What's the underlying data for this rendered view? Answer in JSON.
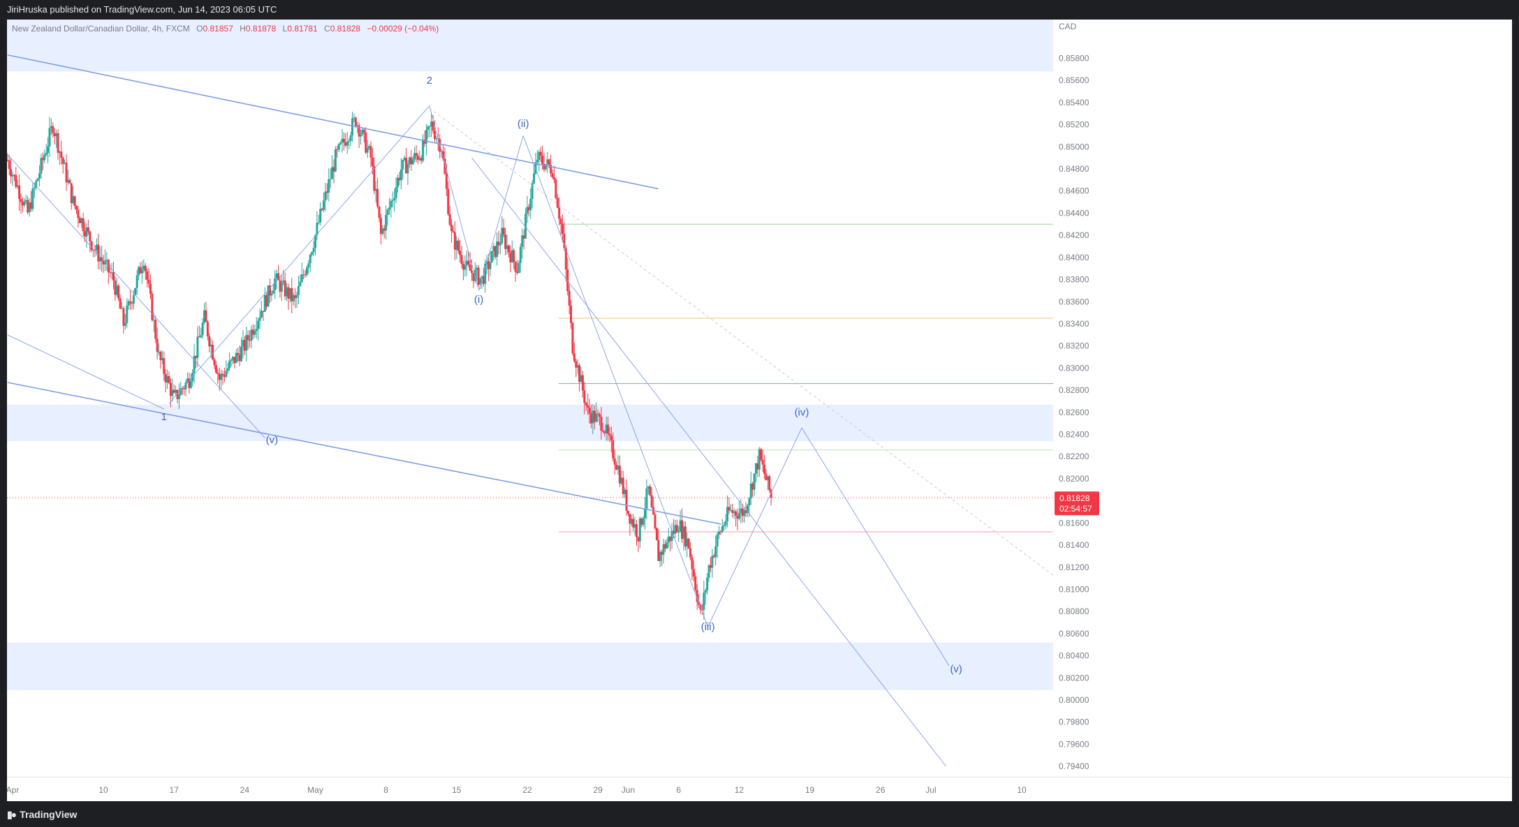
{
  "publisher_line": "JiriHruska published on TradingView.com, Jun 14, 2023 06:05 UTC",
  "legend": {
    "symbol": "New Zealand Dollar/Canadian Dollar, 4h, FXCM",
    "o_label": "O",
    "o_value": "0.81857",
    "h_label": "H",
    "h_value": "0.81878",
    "l_label": "L",
    "l_value": "0.81781",
    "c_label": "C",
    "c_value": "0.81828",
    "change": "−0.00029 (−0.04%)"
  },
  "brand": "TradingView",
  "colors": {
    "up": "#26a69a",
    "down": "#f23645",
    "zone": "#e8efff",
    "trend": "#7d9ee8",
    "wave": "#5d7fe0",
    "price_tag": "#f23645"
  },
  "chart_data": {
    "type": "candlestick",
    "timeframe": "4h",
    "currency_label": "CAD",
    "ylim": [
      0.793,
      0.8615
    ],
    "y_ticks": [
      "0.85800",
      "0.85600",
      "0.85400",
      "0.85200",
      "0.85000",
      "0.84800",
      "0.84600",
      "0.84400",
      "0.84200",
      "0.84000",
      "0.83800",
      "0.83600",
      "0.83400",
      "0.83200",
      "0.83000",
      "0.82800",
      "0.82600",
      "0.82400",
      "0.82200",
      "0.82000",
      "0.81600",
      "0.81400",
      "0.81200",
      "0.81000",
      "0.80800",
      "0.80600",
      "0.80400",
      "0.80200",
      "0.80000",
      "0.79800",
      "0.79600",
      "0.79400"
    ],
    "x_ticks": [
      {
        "label": "Apr",
        "day": 0
      },
      {
        "label": "10",
        "day": 9
      },
      {
        "label": "17",
        "day": 16
      },
      {
        "label": "24",
        "day": 23
      },
      {
        "label": "May",
        "day": 30
      },
      {
        "label": "8",
        "day": 37
      },
      {
        "label": "15",
        "day": 44
      },
      {
        "label": "22",
        "day": 51
      },
      {
        "label": "29",
        "day": 58
      },
      {
        "label": "Jun",
        "day": 61
      },
      {
        "label": "6",
        "day": 66
      },
      {
        "label": "12",
        "day": 72
      },
      {
        "label": "19",
        "day": 79
      },
      {
        "label": "26",
        "day": 86
      },
      {
        "label": "Jul",
        "day": 91
      },
      {
        "label": "10",
        "day": 100
      }
    ],
    "last_price": "0.81828",
    "countdown": "02:54:57",
    "price_path": [
      [
        -0.5,
        0.8488
      ],
      [
        1.5,
        0.844
      ],
      [
        4.0,
        0.852
      ],
      [
        6.0,
        0.845
      ],
      [
        8.0,
        0.841
      ],
      [
        10.0,
        0.838
      ],
      [
        11.0,
        0.834
      ],
      [
        13.0,
        0.84
      ],
      [
        14.5,
        0.831
      ],
      [
        16.0,
        0.8272
      ],
      [
        17.5,
        0.829
      ],
      [
        19.0,
        0.8345
      ],
      [
        20.5,
        0.829
      ],
      [
        23.0,
        0.832
      ],
      [
        26.0,
        0.838
      ],
      [
        28.0,
        0.836
      ],
      [
        30.0,
        0.842
      ],
      [
        32.0,
        0.849
      ],
      [
        34.0,
        0.8525
      ],
      [
        35.5,
        0.849
      ],
      [
        36.5,
        0.842
      ],
      [
        38.5,
        0.848
      ],
      [
        40.5,
        0.8495
      ],
      [
        41.5,
        0.852
      ],
      [
        42.5,
        0.85
      ],
      [
        43.5,
        0.842
      ],
      [
        45.0,
        0.839
      ],
      [
        46.5,
        0.838
      ],
      [
        48.5,
        0.842
      ],
      [
        50.0,
        0.839
      ],
      [
        51.0,
        0.844
      ],
      [
        52.0,
        0.849
      ],
      [
        53.5,
        0.848
      ],
      [
        54.5,
        0.842
      ],
      [
        55.5,
        0.832
      ],
      [
        57.0,
        0.826
      ],
      [
        58.5,
        0.825
      ],
      [
        60.0,
        0.821
      ],
      [
        61.0,
        0.817
      ],
      [
        62.0,
        0.815
      ],
      [
        63.0,
        0.819
      ],
      [
        64.0,
        0.813
      ],
      [
        66.0,
        0.816
      ],
      [
        67.0,
        0.814
      ],
      [
        68.2,
        0.8075
      ],
      [
        69.0,
        0.812
      ],
      [
        70.0,
        0.815
      ],
      [
        71.0,
        0.817
      ],
      [
        72.5,
        0.817
      ],
      [
        74.0,
        0.822
      ],
      [
        75.2,
        0.8183
      ]
    ],
    "annotations": {
      "waves": [
        {
          "label": "1",
          "day": 15.0,
          "price": 0.8253
        },
        {
          "label": "2",
          "day": 41.3,
          "price": 0.8557
        },
        {
          "label": "(v)",
          "day": 25.7,
          "price": 0.8232
        },
        {
          "label": "(i)",
          "day": 46.2,
          "price": 0.8359
        },
        {
          "label": "(ii)",
          "day": 50.6,
          "price": 0.8518
        },
        {
          "label": "(iii)",
          "day": 68.9,
          "price": 0.8063
        },
        {
          "label": "(iv)",
          "day": 78.2,
          "price": 0.8257
        },
        {
          "label": "(v)",
          "day": 93.5,
          "price": 0.8025
        }
      ],
      "zones": [
        {
          "y1": 0.8615,
          "y2": 0.8568
        },
        {
          "y1": 0.8267,
          "y2": 0.8234
        },
        {
          "y1": 0.8052,
          "y2": 0.8009
        }
      ],
      "h_levels": [
        {
          "price": 0.843,
          "color": "#9ed29a"
        },
        {
          "price": 0.8345,
          "color": "#f0c27a"
        },
        {
          "price": 0.8286,
          "color": "#7d9ee8"
        },
        {
          "price": 0.8226,
          "color": "#bfe0bf"
        },
        {
          "price": 0.8152,
          "color": "#f59aa5"
        }
      ],
      "trendlines": [
        {
          "x1": -0.5,
          "y1": 0.8583,
          "x2": 64.0,
          "y2": 0.8462,
          "w": 1.6,
          "c": "#7d9ee8"
        },
        {
          "x1": -0.5,
          "y1": 0.8287,
          "x2": 70.2,
          "y2": 0.8159,
          "w": 1.6,
          "c": "#7d9ee8"
        },
        {
          "x1": -0.5,
          "y1": 0.833,
          "x2": 15.0,
          "y2": 0.8263,
          "w": 0.9,
          "c": "#7d9ee8"
        },
        {
          "x1": -0.5,
          "y1": 0.8493,
          "x2": 25.0,
          "y2": 0.8237,
          "w": 0.9,
          "c": "#7d9ee8"
        },
        {
          "x1": 15.5,
          "y1": 0.8268,
          "x2": 41.3,
          "y2": 0.8537,
          "w": 0.9,
          "c": "#7d9ee8"
        },
        {
          "x1": 41.3,
          "y1": 0.8537,
          "x2": 46.2,
          "y2": 0.837,
          "w": 0.9,
          "c": "#7d9ee8"
        },
        {
          "x1": 46.2,
          "y1": 0.837,
          "x2": 50.6,
          "y2": 0.851,
          "w": 0.9,
          "c": "#7d9ee8"
        },
        {
          "x1": 50.6,
          "y1": 0.851,
          "x2": 68.9,
          "y2": 0.8066,
          "w": 0.9,
          "c": "#7d9ee8"
        },
        {
          "x1": 68.9,
          "y1": 0.8066,
          "x2": 78.2,
          "y2": 0.8246,
          "w": 0.9,
          "c": "#7d9ee8"
        },
        {
          "x1": 78.2,
          "y1": 0.8246,
          "x2": 92.8,
          "y2": 0.8031,
          "w": 0.9,
          "c": "#7d9ee8"
        },
        {
          "x1": 45.5,
          "y1": 0.849,
          "x2": 92.5,
          "y2": 0.794,
          "w": 0.9,
          "c": "#7d9ee8"
        }
      ],
      "dashed": {
        "x1": 41.3,
        "y1": 0.8535,
        "x2": 105.0,
        "y2": 0.81
      }
    }
  }
}
